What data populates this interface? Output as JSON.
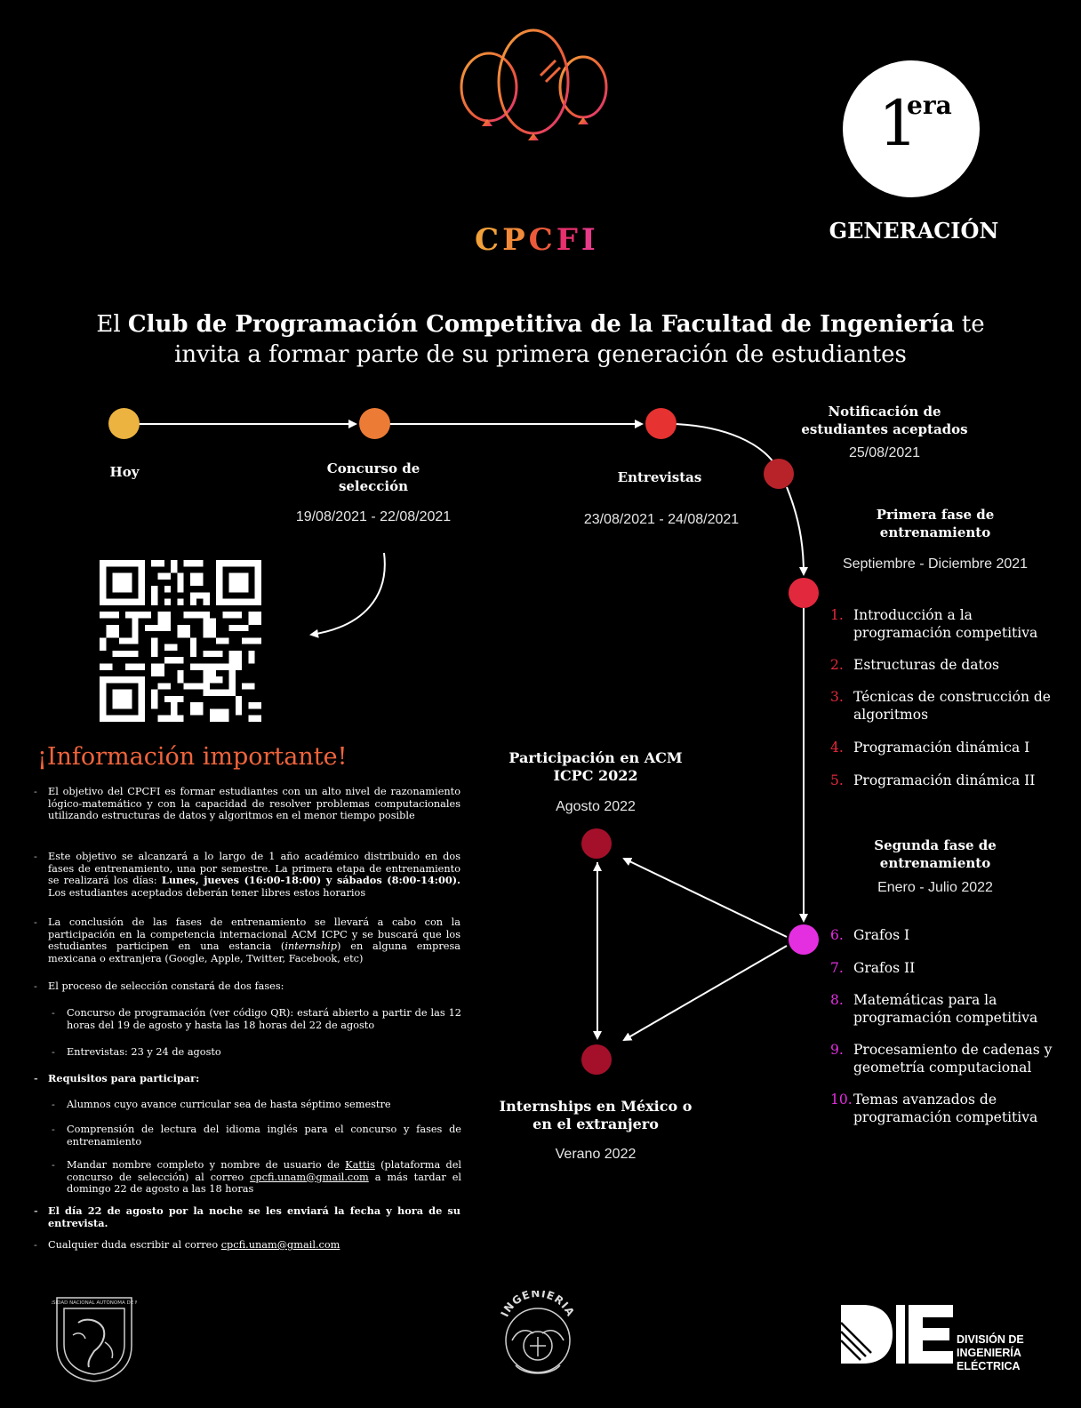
{
  "colors": {
    "background": "#000000",
    "yellow": "#ecb340",
    "orange": "#ec7b36",
    "red": "#e63231",
    "dark_red": "#b8232a",
    "crimson": "#e2283c",
    "magenta": "#e42fe0",
    "maroon": "#a4102a",
    "info_title": "#f0643c"
  },
  "header": {
    "logo_letters": [
      "C",
      "P",
      "C",
      "F",
      "I"
    ],
    "badge_number": "1",
    "badge_superscript": "era",
    "badge_label": "GENERACIÓN"
  },
  "invite": {
    "line1_pre": "El ",
    "line1_bold": "Club de Programación Competitiva de la Facultad de Ingeniería",
    "line1_post": " te",
    "line2": "invita a formar parte de su primera generación de estudiantes"
  },
  "timeline": {
    "hoy": "Hoy",
    "concurso_title": "Concurso de selección",
    "concurso_date": "19/08/2021 - 22/08/2021",
    "entrevistas_title": "Entrevistas",
    "entrevistas_date": "23/08/2021 - 24/08/2021",
    "notificacion_title": "Notificación de estudiantes aceptados",
    "notificacion_date": "25/08/2021",
    "fase1_title": "Primera fase de entrenamiento",
    "fase1_date": "Septiembre - Diciembre 2021",
    "fase2_title": "Segunda fase de entrenamiento",
    "fase2_date": "Enero - Julio 2022",
    "acm_title": "Participación en ACM ICPC 2022",
    "acm_date": "Agosto 2022",
    "intern_title": "Internships en México o en el extranjero",
    "intern_date": "Verano 2022"
  },
  "fase1_topics": [
    {
      "num": "1.",
      "text": "Introducción a la programación competitiva"
    },
    {
      "num": "2.",
      "text": "Estructuras de datos"
    },
    {
      "num": "3.",
      "text": "Técnicas de construcción de algoritmos"
    },
    {
      "num": "4.",
      "text": "Programación dinámica I"
    },
    {
      "num": "5.",
      "text": "Programación dinámica II"
    }
  ],
  "fase2_topics": [
    {
      "num": "6.",
      "text": "Grafos I"
    },
    {
      "num": "7.",
      "text": "Grafos II"
    },
    {
      "num": "8.",
      "text": "Matemáticas para la programación competitiva"
    },
    {
      "num": "9.",
      "text": "Procesamiento de cadenas y geometría computacional"
    },
    {
      "num": "10.",
      "text": "Temas avanzados de programación competitiva"
    }
  ],
  "info": {
    "title": "¡Información importante!",
    "p1": "El objetivo del CPCFI es formar estudiantes con un alto nivel de razonamiento lógico-matemático y con la capacidad de resolver problemas computacionales utilizando estructuras de datos y algoritmos en el menor tiempo posible",
    "p2_pre": "Este objetivo se alcanzará a lo largo de 1 año académico distribuido en dos fases de entrenamiento, una por semestre. La primera etapa de entrenamiento se realizará los días: ",
    "p2_bold": "Lunes, jueves (16:00-18:00) y sábados (8:00-14:00).",
    "p2_post": " Los estudiantes aceptados deberán tener libres estos horarios",
    "p3_pre": "La conclusión de las fases de entrenamiento se llevará a cabo con la participación en la competencia internacional ACM ICPC y se buscará que los estudiantes participen en una estancia (",
    "p3_italic": "internship",
    "p3_post": ") en alguna empresa mexicana o extranjera (Google, Apple, Twitter, Facebook, etc)",
    "p4": "El proceso de selección constará de dos fases:",
    "p4a": "Concurso de programación (ver código QR): estará abierto a partir de las 12 horas del 19 de agosto y hasta las 18 horas del 22 de agosto",
    "p4b": "Entrevistas: 23 y 24 de agosto",
    "p5": "Requisitos para participar:",
    "p5a": "Alumnos cuyo avance curricular sea de hasta séptimo semestre",
    "p5b": "Comprensión de lectura del idioma inglés para el concurso y fases de entrenamiento",
    "p5c_pre": "Mandar nombre completo y nombre de usuario de ",
    "p5c_kattis": "Kattis",
    "p5c_mid": " (plataforma del concurso de selección) al correo ",
    "p5c_email": "cpcfi.unam@gmail.com",
    "p5c_post": " a más tardar el domingo 22 de agosto a las 18 horas",
    "p6": "El día 22 de agosto por la noche se les enviará la fecha y hora de su entrevista.",
    "p7_pre": "Cualquier duda escribir al correo ",
    "p7_email": "cpcfi.unam@gmail.com",
    "dash": "-"
  },
  "footer": {
    "die_line1": "DIVISIÓN DE",
    "die_line2": "INGENIERÍA ELÉCTRICA",
    "ingenieria_arc": "INGENIERIA",
    "unam_arc": "UNIVERSIDAD NACIONAL AUTÓNOMA DE MÉXICO"
  }
}
